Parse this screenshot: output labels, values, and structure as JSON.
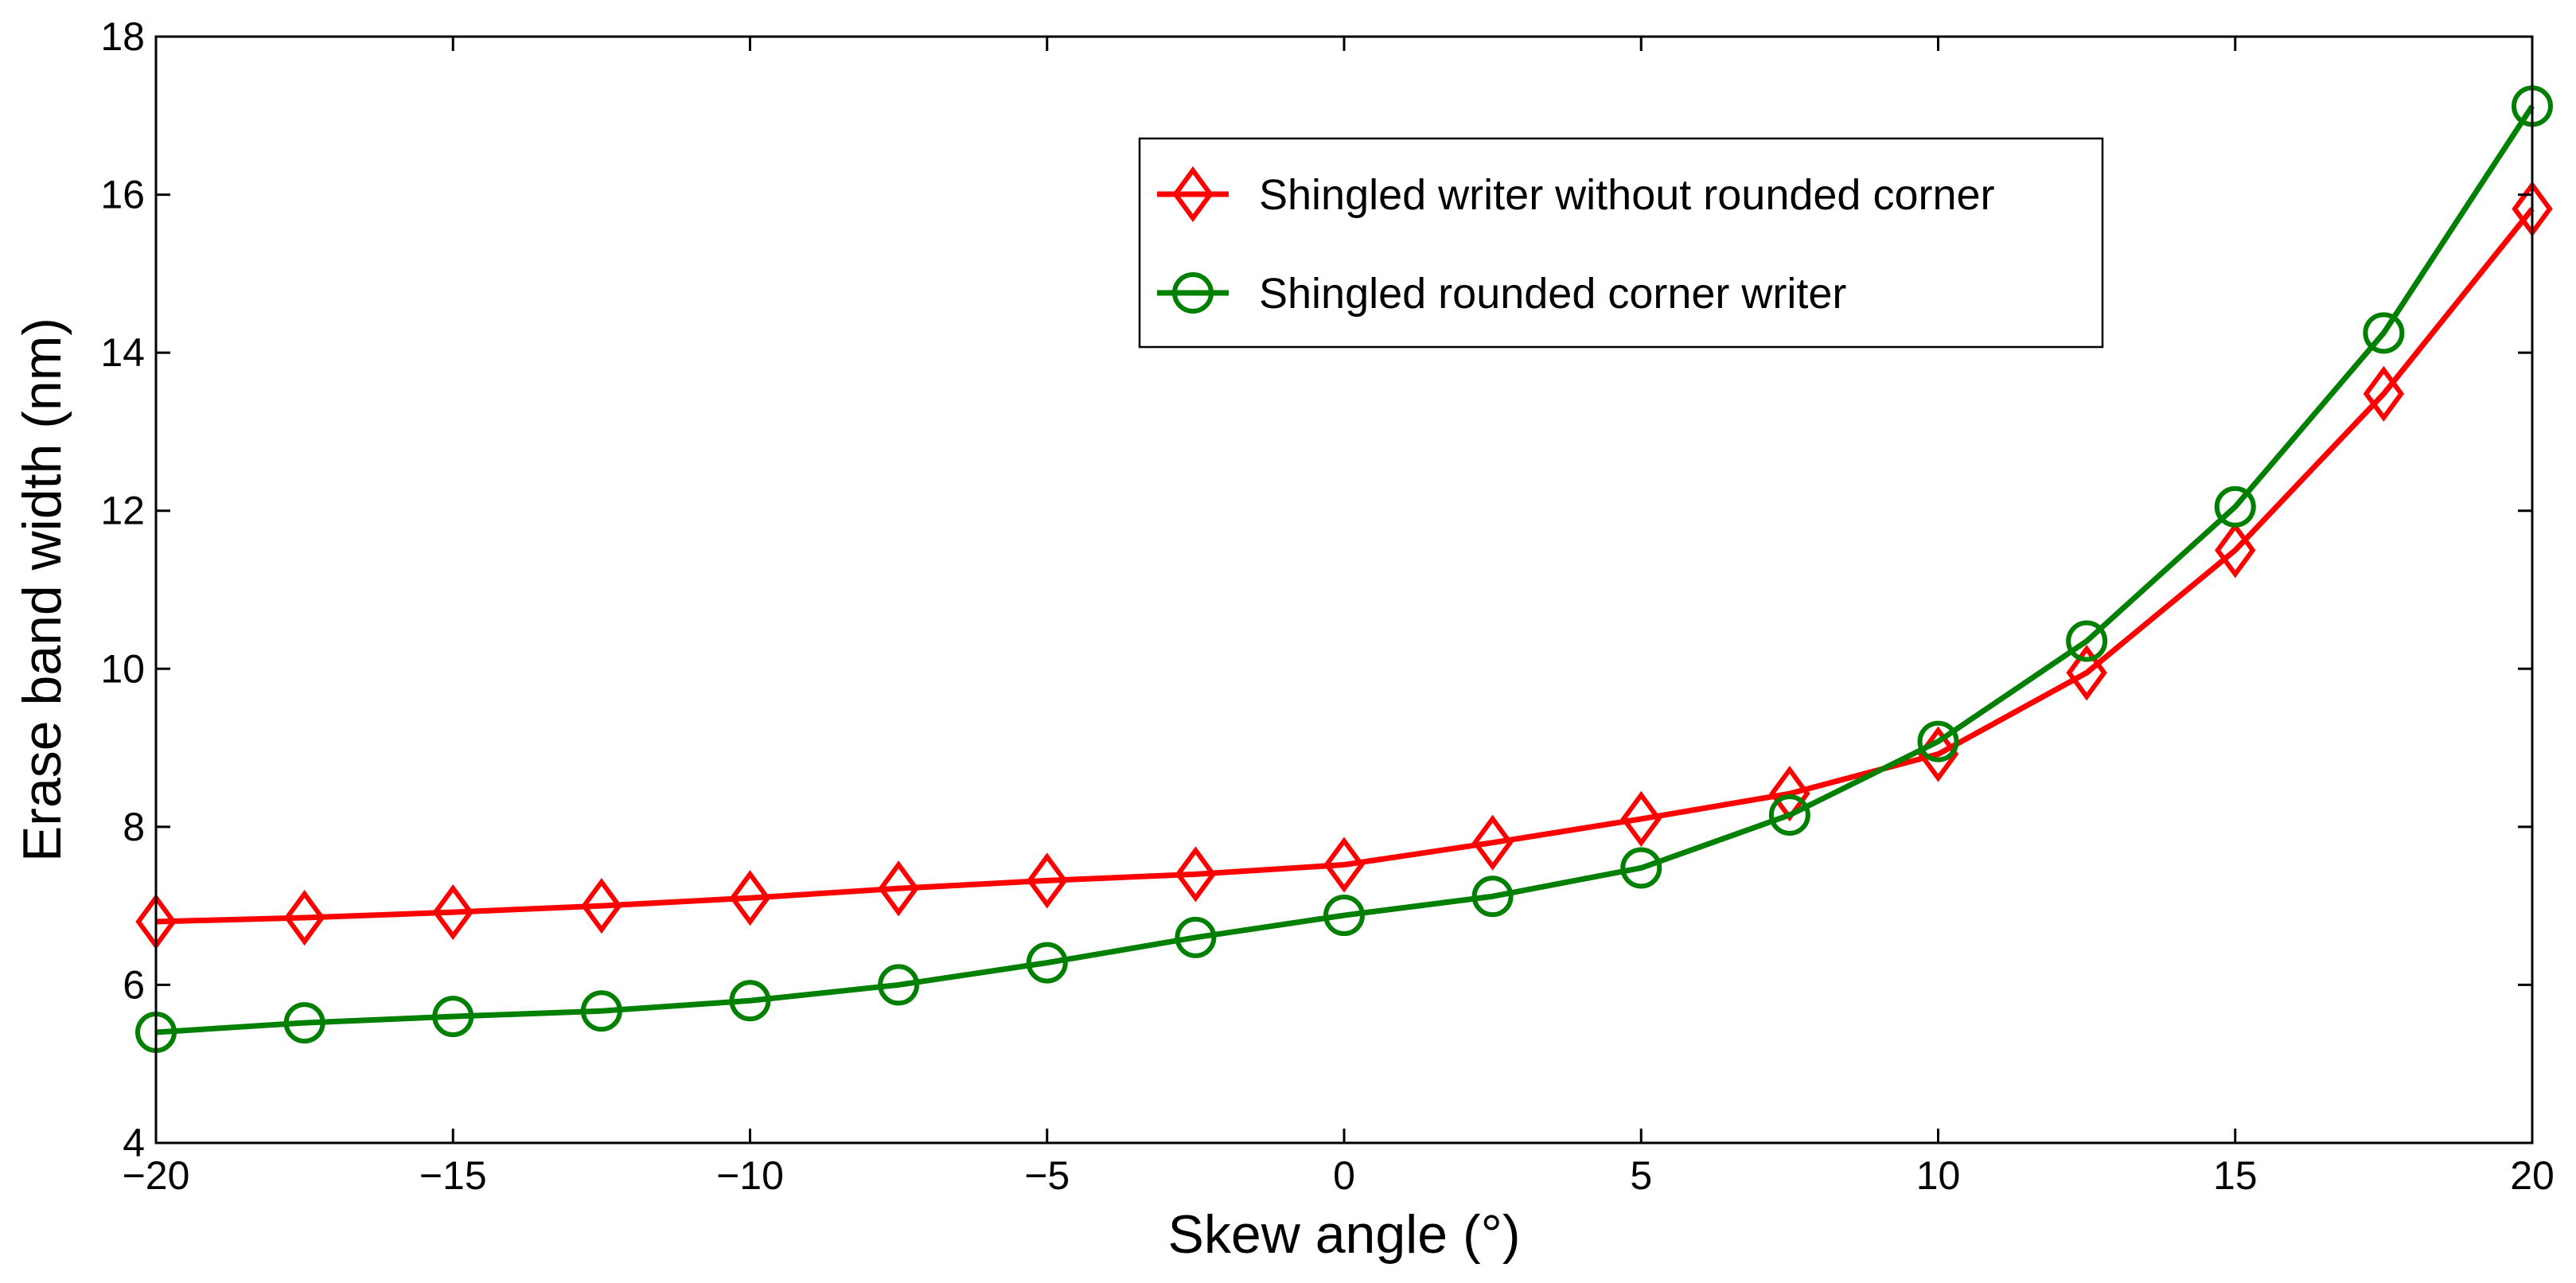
{
  "chart_data": {
    "type": "line",
    "title": "",
    "xlabel": "Skew angle (°)",
    "ylabel": "Erase band width (nm)",
    "xlim": [
      -20,
      20
    ],
    "ylim": [
      4,
      18
    ],
    "grid": false,
    "legend_position": "top-right",
    "x_ticks": [
      -20,
      -15,
      -10,
      -5,
      0,
      5,
      10,
      15,
      20
    ],
    "x_tick_labels": [
      "−20",
      "−15",
      "−10",
      "−5",
      "0",
      "5",
      "10",
      "15",
      "20"
    ],
    "y_ticks": [
      4,
      6,
      8,
      10,
      12,
      14,
      16,
      18
    ],
    "y_tick_labels": [
      "4",
      "6",
      "8",
      "10",
      "12",
      "14",
      "16",
      "18"
    ],
    "x": [
      -20,
      -17.5,
      -15,
      -12.5,
      -10,
      -7.5,
      -5,
      -2.5,
      0,
      2.5,
      5,
      7.5,
      10,
      12.5,
      15,
      17.5,
      20
    ],
    "series": [
      {
        "name": "Shingled writer without rounded corner",
        "color": "#ff0000",
        "marker": "diamond",
        "values": [
          6.8,
          6.85,
          6.92,
          7.0,
          7.1,
          7.22,
          7.32,
          7.4,
          7.52,
          7.8,
          8.1,
          8.42,
          8.92,
          9.95,
          11.5,
          13.48,
          15.82
        ]
      },
      {
        "name": "Shingled rounded corner writer",
        "color": "#008000",
        "marker": "circle",
        "values": [
          5.4,
          5.52,
          5.6,
          5.67,
          5.8,
          6.0,
          6.28,
          6.6,
          6.88,
          7.12,
          7.48,
          8.15,
          9.08,
          10.35,
          12.05,
          14.25,
          17.12
        ]
      }
    ]
  }
}
